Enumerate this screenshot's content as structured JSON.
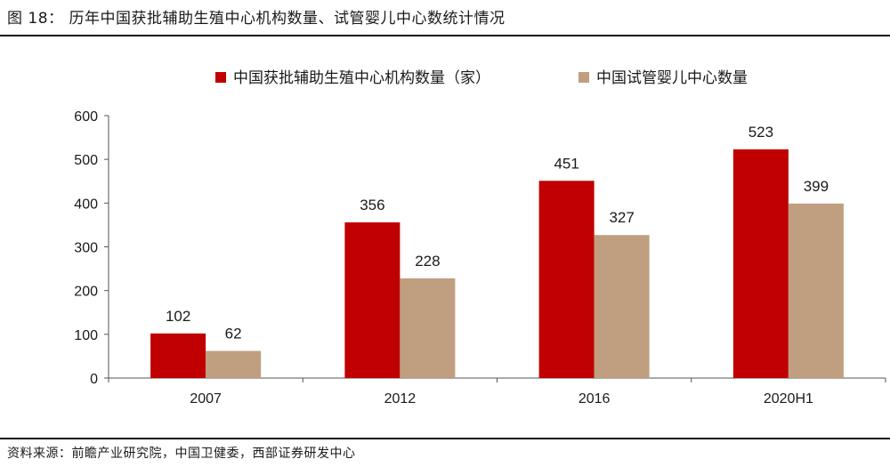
{
  "figure": {
    "title": "图 18：  历年中国获批辅助生殖中心机构数量、试管婴儿中心数统计情况",
    "source": "资料来源：前瞻产业研究院，中国卫健委，西部证券研发中心"
  },
  "chart_data": {
    "type": "bar",
    "title": "",
    "xlabel": "",
    "ylabel": "",
    "categories": [
      "2007",
      "2012",
      "2016",
      "2020H1"
    ],
    "ylim": [
      0,
      600
    ],
    "yticks": [
      0,
      100,
      200,
      300,
      400,
      500,
      600
    ],
    "grid": false,
    "legend_position": "top",
    "series": [
      {
        "name": "中国获批辅助生殖中心机构数量（家）",
        "values": [
          102,
          356,
          451,
          523
        ],
        "color": "#C00000"
      },
      {
        "name": "中国试管婴儿中心数量",
        "values": [
          62,
          228,
          327,
          399
        ],
        "color": "#BF9F7F"
      }
    ]
  }
}
